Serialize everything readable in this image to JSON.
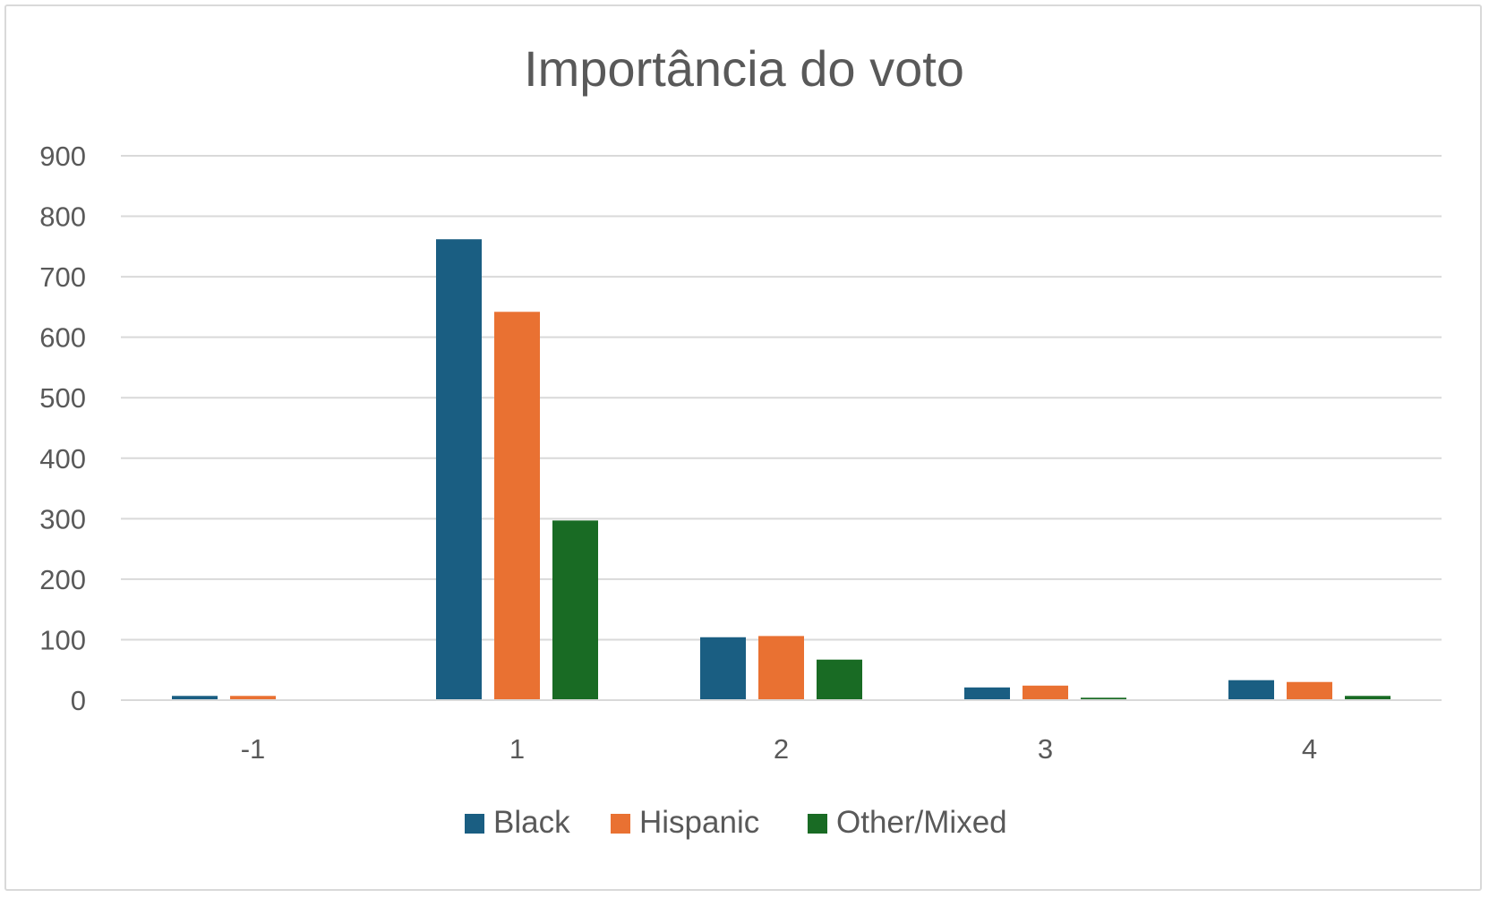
{
  "chart_data": {
    "type": "bar",
    "title": "Importância do voto",
    "xlabel": "",
    "ylabel": "",
    "categories": [
      "-1",
      "1",
      "2",
      "3",
      "4"
    ],
    "series": [
      {
        "name": "Black",
        "color": "#1a5e82",
        "values": [
          7,
          762,
          104,
          21,
          33
        ]
      },
      {
        "name": "Hispanic",
        "color": "#e97132",
        "values": [
          7,
          642,
          106,
          24,
          30
        ]
      },
      {
        "name": "Other/Mixed",
        "color": "#196b24",
        "values": [
          0,
          297,
          67,
          4,
          7
        ]
      }
    ],
    "ylim": [
      0,
      900
    ],
    "yticks": [
      0,
      100,
      200,
      300,
      400,
      500,
      600,
      700,
      800,
      900
    ],
    "grid": true,
    "legend_position": "bottom"
  }
}
